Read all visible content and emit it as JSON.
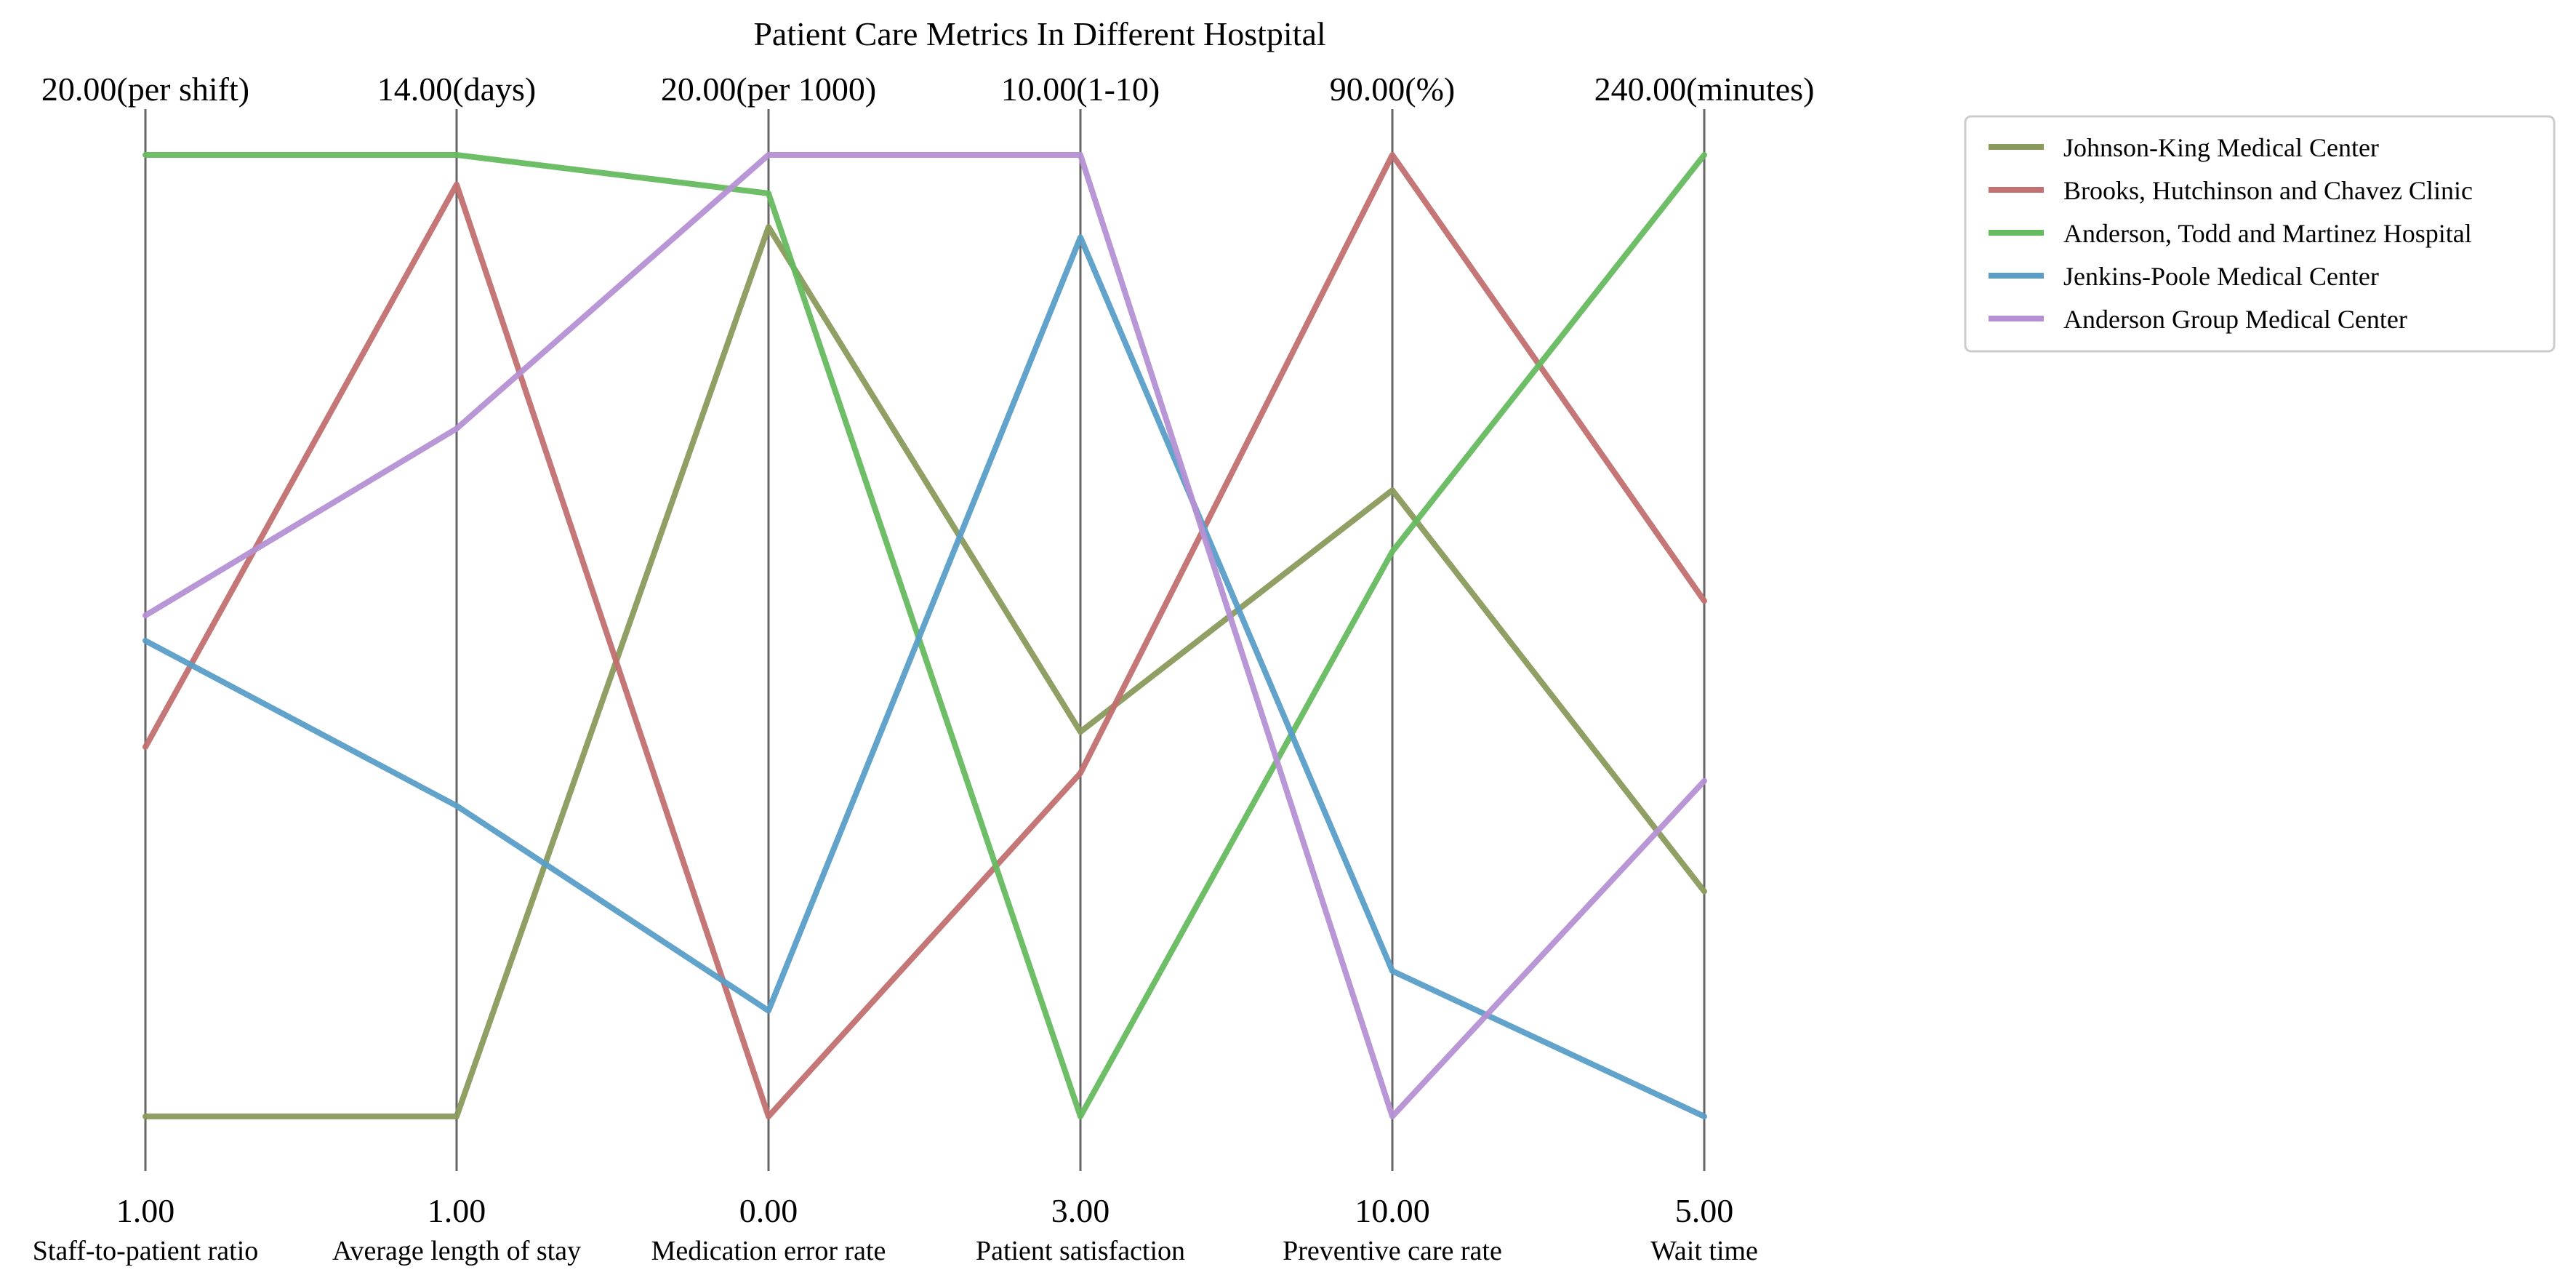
{
  "chart_data": {
    "type": "parallel-coordinates",
    "title": "Patient Care Metrics In Different Hostpital",
    "axes": [
      {
        "name": "Staff-to-patient ratio",
        "min_label": "1.00",
        "max_label": "20.00(per shift)",
        "min": 1,
        "max": 20
      },
      {
        "name": "Average length of stay",
        "min_label": "1.00",
        "max_label": "14.00(days)",
        "min": 1,
        "max": 14
      },
      {
        "name": "Medication error rate",
        "min_label": "0.00",
        "max_label": "20.00(per 1000)",
        "min": 0,
        "max": 20
      },
      {
        "name": "Patient satisfaction",
        "min_label": "3.00",
        "max_label": "10.00(1-10)",
        "min": 3,
        "max": 10
      },
      {
        "name": "Preventive care rate",
        "min_label": "10.00",
        "max_label": "90.00(%)",
        "min": 10,
        "max": 90
      },
      {
        "name": "Wait time",
        "min_label": "5.00",
        "max_label": "240.00(minutes)",
        "min": 5,
        "max": 240
      }
    ],
    "series": [
      {
        "name": "Johnson-King  Medical Center",
        "color": "#8a9a5b",
        "values": [
          1.0,
          1.0,
          18.5,
          5.8,
          62.1,
          60.0
        ]
      },
      {
        "name": "Brooks, Hutchinson and Chavez  Clinic",
        "color": "#c27070",
        "values": [
          8.3,
          13.6,
          0.0,
          5.5,
          90.0,
          131.0
        ]
      },
      {
        "name": "Anderson, Todd and Martinez  Hospital",
        "color": "#65bb5f",
        "values": [
          20.0,
          14.0,
          19.2,
          3.0,
          57.0,
          240.0
        ]
      },
      {
        "name": "Jenkins-Poole  Medical Center",
        "color": "#5a9ec8",
        "values": [
          10.4,
          5.2,
          2.2,
          9.4,
          22.1,
          5.0
        ]
      },
      {
        "name": "Anderson Group  Medical Center",
        "color": "#b590d3",
        "values": [
          10.9,
          10.3,
          20.0,
          10.0,
          10.0,
          87.0
        ]
      }
    ],
    "legend_position": "top-right",
    "grid": false
  }
}
